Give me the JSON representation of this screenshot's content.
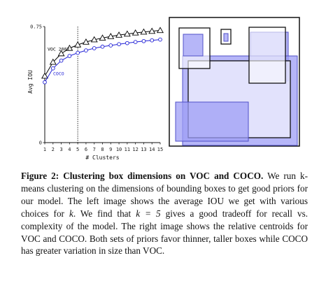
{
  "chart_data": {
    "type": "line",
    "x": [
      1,
      2,
      3,
      4,
      5,
      6,
      7,
      8,
      9,
      10,
      11,
      12,
      13,
      14,
      15
    ],
    "series": [
      {
        "name": "VOC 2007",
        "color": "#000000",
        "marker": "triangle",
        "values": [
          0.43,
          0.52,
          0.575,
          0.61,
          0.632,
          0.65,
          0.665,
          0.676,
          0.686,
          0.695,
          0.702,
          0.709,
          0.715,
          0.72,
          0.725
        ]
      },
      {
        "name": "COCO",
        "color": "#1f1fd6",
        "marker": "circle",
        "values": [
          0.39,
          0.48,
          0.53,
          0.56,
          0.58,
          0.596,
          0.61,
          0.62,
          0.628,
          0.636,
          0.643,
          0.65,
          0.656,
          0.661,
          0.666
        ]
      }
    ],
    "ylim": [
      0,
      0.75
    ],
    "yticks": [
      "0",
      "0.75"
    ],
    "xticks": [
      "1",
      "2",
      "3",
      "4",
      "5",
      "6",
      "7",
      "8",
      "9",
      "10",
      "11",
      "12",
      "13",
      "14",
      "15"
    ],
    "xlabel": "# Clusters",
    "ylabel": "Avg IOU",
    "vline_x": 5
  },
  "box_panel": {
    "voc_color": "#ffffff",
    "voc_stroke": "#111111",
    "coco_color": "#9d9df5",
    "coco_stroke": "#5050c8"
  },
  "caption": {
    "label": "Figure 2:",
    "title": "Clustering box dimensions on VOC and COCO.",
    "part1": " We run k-means clustering on the dimensions of bounding boxes to get good priors for our model. The left image shows the average IOU we get with various choices for ",
    "k": "k",
    "part2": ". We find that ",
    "eq": "k = 5",
    "part3": " gives a good tradeoff for recall vs. complexity of the model. The right image shows the relative centroids for VOC and COCO. Both sets of priors favor thinner, taller boxes while COCO has greater variation in size than VOC."
  }
}
